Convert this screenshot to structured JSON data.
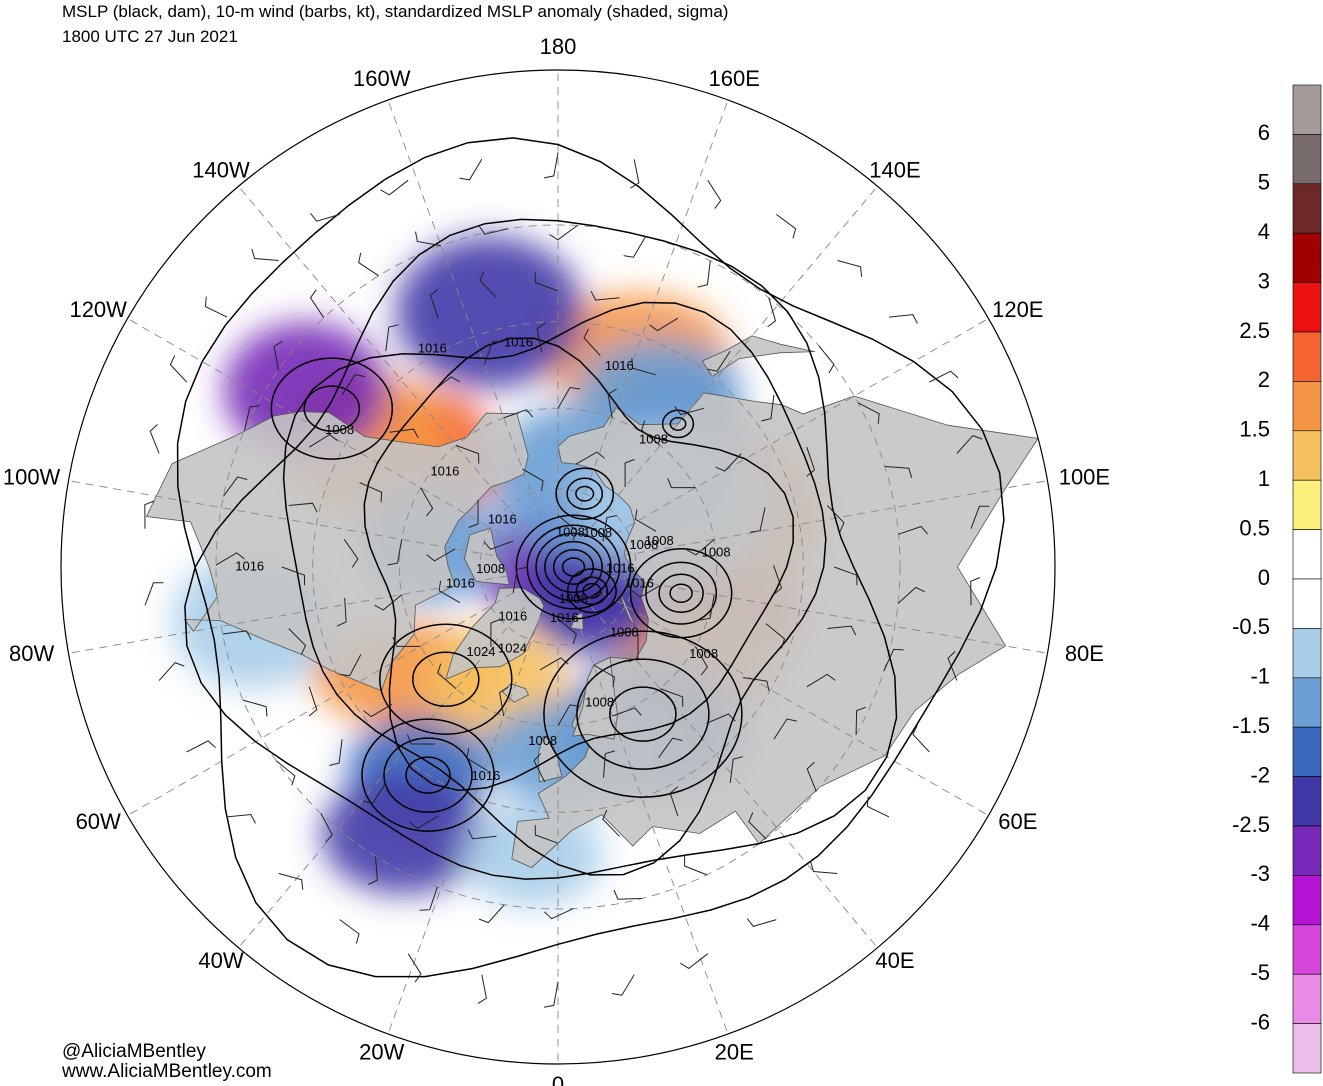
{
  "title": {
    "line1": "MSLP (black, dam), 10-m wind (barbs, kt), standardized MSLP anomaly (shaded, sigma)",
    "line2": "1800 UTC 27 Jun 2021"
  },
  "credits": {
    "twitter": "@AliciaMBentley",
    "website": "www.AliciaMBentley.com"
  },
  "longitude_labels": [
    {
      "text": "100E",
      "lon": 100
    },
    {
      "text": "80E",
      "lon": 80
    },
    {
      "text": "60E",
      "lon": 60
    },
    {
      "text": "40E",
      "lon": 40
    },
    {
      "text": "20E",
      "lon": 20
    },
    {
      "text": "0",
      "lon": 0
    },
    {
      "text": "20W",
      "lon": -20
    },
    {
      "text": "40W",
      "lon": -40
    },
    {
      "text": "60W",
      "lon": -60
    },
    {
      "text": "80W",
      "lon": -80
    },
    {
      "text": "100W",
      "lon": -100
    },
    {
      "text": "120W",
      "lon": -120
    },
    {
      "text": "140W",
      "lon": -140
    },
    {
      "text": "160W",
      "lon": -160
    },
    {
      "text": "180",
      "lon": 180
    },
    {
      "text": "160E",
      "lon": 160
    },
    {
      "text": "140E",
      "lon": 140
    },
    {
      "text": "120E",
      "lon": 120
    }
  ],
  "isobar_labels": [
    {
      "text": "1008",
      "lon": 95,
      "lat": 60
    },
    {
      "text": "1008",
      "lon": 104,
      "lat": 70
    },
    {
      "text": "1008",
      "lon": 104,
      "lat": 73
    },
    {
      "text": "1016",
      "lon": 78,
      "lat": 74
    },
    {
      "text": "1016",
      "lon": 88,
      "lat": 78
    },
    {
      "text": "1008",
      "lon": 59,
      "lat": 58
    },
    {
      "text": "1008",
      "lon": 45,
      "lat": 72
    },
    {
      "text": "1008",
      "lon": 17,
      "lat": 63
    },
    {
      "text": "1008",
      "lon": 25,
      "lat": 83
    },
    {
      "text": "1016",
      "lon": 7,
      "lat": 80
    },
    {
      "text": "1008",
      "lon": -5,
      "lat": 57
    },
    {
      "text": "1016",
      "lon": -19,
      "lat": 49
    },
    {
      "text": "1024",
      "lon": -29,
      "lat": 72
    },
    {
      "text": "1016",
      "lon": -42,
      "lat": 77
    },
    {
      "text": "1024",
      "lon": -42,
      "lat": 68
    },
    {
      "text": "1008",
      "lon": -88,
      "lat": 77
    },
    {
      "text": "1016",
      "lon": -80,
      "lat": 71
    },
    {
      "text": "1016",
      "lon": -130,
      "lat": 76
    },
    {
      "text": "1016",
      "lon": -130,
      "lat": 62
    },
    {
      "text": "1008",
      "lon": -122,
      "lat": 43
    },
    {
      "text": "1016",
      "lon": -90,
      "lat": 35
    },
    {
      "text": "1016",
      "lon": -150,
      "lat": 44
    },
    {
      "text": "1016",
      "lon": -170,
      "lat": 48
    },
    {
      "text": "1016",
      "lon": 163,
      "lat": 51
    },
    {
      "text": "1008",
      "lon": 143,
      "lat": 60
    },
    {
      "text": "1008",
      "lon": 130,
      "lat": 80
    },
    {
      "text": "1008",
      "lon": 160,
      "lat": 83
    }
  ],
  "colorbar": {
    "levels": [
      "6",
      "5",
      "4",
      "3",
      "2.5",
      "2",
      "1.5",
      "1",
      "0.5",
      "0",
      "-0.5",
      "-1",
      "-1.5",
      "-2",
      "-2.5",
      "-3",
      "-4",
      "-5",
      "-6"
    ],
    "colors": [
      "#a49a98",
      "#786d6c",
      "#6e2828",
      "#a00000",
      "#ec1010",
      "#f46432",
      "#f49646",
      "#f6c05e",
      "#fcee7a",
      "#ffffff",
      "#ffffff",
      "#a9cde9",
      "#6a9ed4",
      "#3968bc",
      "#4038a6",
      "#7628b6",
      "#b614d4",
      "#d648dc",
      "#e88ae6",
      "#ecbde8"
    ]
  },
  "anomaly_features": [
    {
      "lon": 88,
      "lat": 62,
      "value": 3.5
    },
    {
      "lon": 75,
      "lat": 58,
      "value": 2
    },
    {
      "lon": 100,
      "lat": 70,
      "value": 3
    },
    {
      "lon": 105,
      "lat": 52,
      "value": 1.5
    },
    {
      "lon": 55,
      "lat": 58,
      "value": 1.5
    },
    {
      "lon": 160,
      "lat": 48,
      "value": 1.5
    },
    {
      "lon": -130,
      "lat": 58,
      "value": 2
    },
    {
      "lon": -122,
      "lat": 48,
      "value": 1.5
    },
    {
      "lon": -55,
      "lat": 55,
      "value": 1.5
    },
    {
      "lon": -28,
      "lat": 65,
      "value": 1
    },
    {
      "lon": -125,
      "lat": 35,
      "value": -3
    },
    {
      "lon": -165,
      "lat": 42,
      "value": -2.5
    },
    {
      "lon": -35,
      "lat": 45,
      "value": -2
    },
    {
      "lon": -30,
      "lat": 35,
      "value": -2.5
    },
    {
      "lon": 30,
      "lat": 55,
      "value": -2
    },
    {
      "lon": 135,
      "lat": 58,
      "value": -2
    },
    {
      "lon": 150,
      "lat": 52,
      "value": -1.5
    },
    {
      "lon": 90,
      "lat": 88,
      "value": -3
    },
    {
      "lon": 60,
      "lat": 82,
      "value": -2.5
    },
    {
      "lon": 170,
      "lat": 73,
      "value": -1.5
    },
    {
      "lon": 5,
      "lat": 55,
      "value": -1.5
    },
    {
      "lon": -100,
      "lat": 65,
      "value": -1.5
    },
    {
      "lon": -80,
      "lat": 35,
      "value": -1
    },
    {
      "lon": 120,
      "lat": 65,
      "value": -1
    },
    {
      "lon": -5,
      "lat": 38,
      "value": -1
    }
  ]
}
